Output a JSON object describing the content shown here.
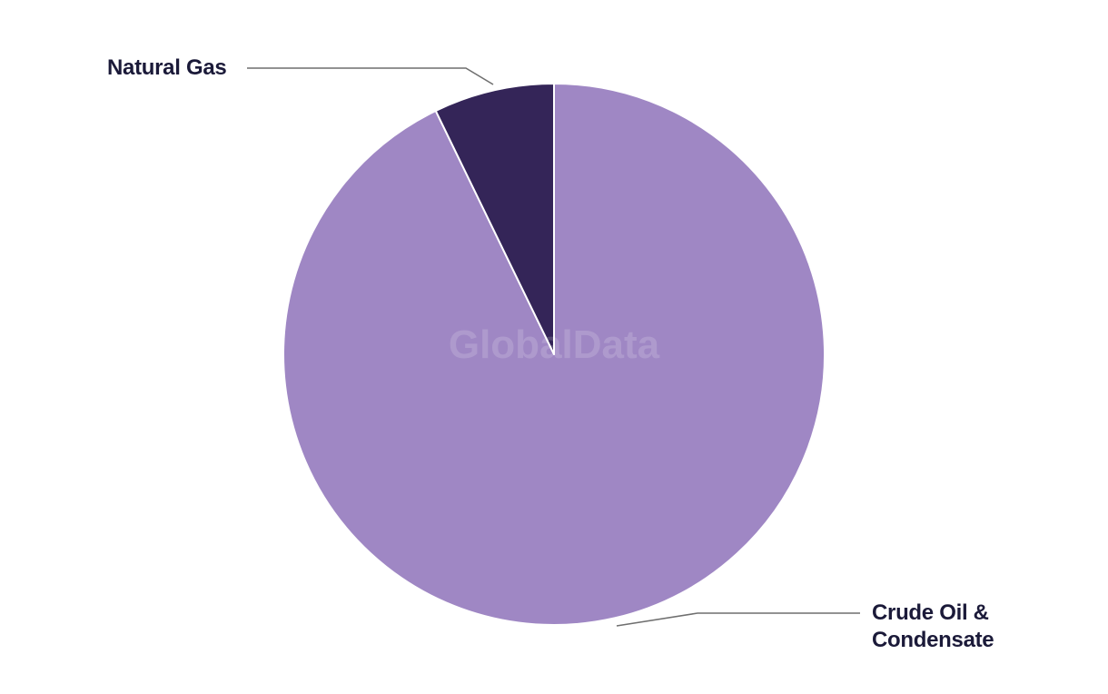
{
  "watermark": "GlobalData",
  "chart_data": {
    "type": "pie",
    "title": "",
    "legend_position": "none",
    "data_labels_shown": "category callout labels only, no values",
    "start_angle": "12 o'clock, clockwise",
    "slices": [
      {
        "label": "Crude Oil & Condensate",
        "value": 92.8,
        "color": "#9f87c4"
      },
      {
        "label": "Natural Gas",
        "value": 7.2,
        "color": "#342558"
      }
    ]
  },
  "style": {
    "slice_separator_color": "#ffffff",
    "leader_line_color": "#6f6f6f",
    "label_text_color": "#1b1a39",
    "watermark_color": "rgba(255,255,255,0.16)",
    "background_color": "#ffffff"
  }
}
